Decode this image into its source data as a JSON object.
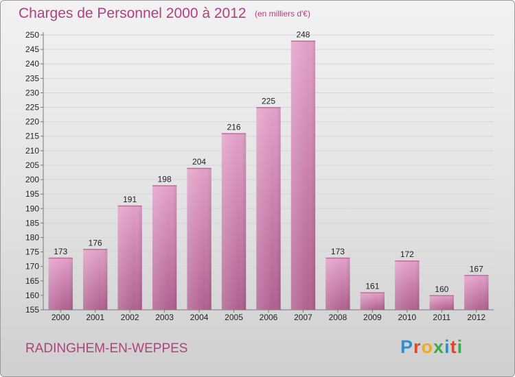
{
  "title": "Charges de Personnel 2000 à 2012",
  "subtitle": "(en milliers d'€)",
  "town": "RADINGHEM-EN-WEPPES",
  "brand": "Proxiti",
  "colors": {
    "accent": "#b0407e",
    "bar_top": "#e2a0c8",
    "bar_bottom": "#b0608f",
    "brand_letters": [
      "#2b8fd6",
      "#e0462d",
      "#f2a81f",
      "#3aab48",
      "#2b8fd6",
      "#e0462d",
      "#3aab48"
    ]
  },
  "chart_data": {
    "type": "bar",
    "categories": [
      "2000",
      "2001",
      "2002",
      "2003",
      "2004",
      "2005",
      "2006",
      "2007",
      "2008",
      "2009",
      "2010",
      "2011",
      "2012"
    ],
    "values": [
      173,
      176,
      191,
      198,
      204,
      216,
      225,
      248,
      173,
      161,
      172,
      160,
      167
    ],
    "title": "Charges de Personnel 2000 à 2012",
    "subtitle": "(en milliers d'€)",
    "xlabel": "",
    "ylabel": "",
    "ylim": [
      155,
      250
    ],
    "ytick_step": 5,
    "grid": true
  }
}
